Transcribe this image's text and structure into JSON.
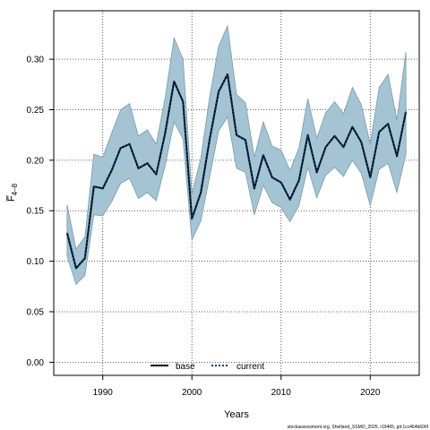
{
  "chart_data": {
    "type": "line",
    "xlabel": "Years",
    "ylabel": "F̅",
    "ylabel_sub": "4–8",
    "xlim": [
      1984.5,
      2025.5
    ],
    "ylim": [
      -0.013,
      0.348
    ],
    "x_ticks": [
      1990,
      2000,
      2010,
      2020
    ],
    "y_ticks": [
      0.0,
      0.05,
      0.1,
      0.15,
      0.2,
      0.25,
      0.3
    ],
    "y_tick_labels": [
      "0.00",
      "0.05",
      "0.10",
      "0.15",
      "0.20",
      "0.25",
      "0.30"
    ],
    "grid": true,
    "legend_position": "bottom-center",
    "band_color": "#a5c4d3",
    "band_edge_color": "#7a9aaa",
    "x": [
      1986,
      1987,
      1988,
      1989,
      1990,
      1991,
      1992,
      1993,
      1994,
      1995,
      1996,
      1997,
      1998,
      1999,
      2000,
      2001,
      2002,
      2003,
      2004,
      2005,
      2006,
      2007,
      2008,
      2009,
      2010,
      2011,
      2012,
      2013,
      2014,
      2015,
      2016,
      2017,
      2018,
      2019,
      2020,
      2021,
      2022,
      2023,
      2024
    ],
    "series": [
      {
        "name": "base",
        "color": "#000000",
        "style": "solid",
        "values": [
          0.128,
          0.093,
          0.103,
          0.174,
          0.172,
          0.19,
          0.212,
          0.216,
          0.192,
          0.197,
          0.186,
          0.227,
          0.278,
          0.258,
          0.142,
          0.168,
          0.221,
          0.268,
          0.285,
          0.225,
          0.22,
          0.172,
          0.205,
          0.183,
          0.178,
          0.161,
          0.18,
          0.225,
          0.188,
          0.213,
          0.224,
          0.213,
          0.233,
          0.218,
          0.183,
          0.228,
          0.236,
          0.204,
          0.248
        ]
      },
      {
        "name": "current",
        "color": "#003c6e",
        "style": "dotted",
        "values": [
          0.128,
          0.093,
          0.103,
          0.174,
          0.172,
          0.19,
          0.212,
          0.216,
          0.192,
          0.197,
          0.186,
          0.227,
          0.278,
          0.258,
          0.142,
          0.168,
          0.221,
          0.268,
          0.285,
          0.225,
          0.22,
          0.172,
          0.205,
          0.183,
          0.178,
          0.161,
          0.18,
          0.225,
          0.188,
          0.213,
          0.224,
          0.213,
          0.233,
          0.218,
          0.183,
          0.228,
          0.236,
          0.204,
          0.248
        ]
      }
    ],
    "band_upper": [
      0.156,
      0.112,
      0.124,
      0.206,
      0.203,
      0.227,
      0.25,
      0.256,
      0.224,
      0.23,
      0.216,
      0.262,
      0.321,
      0.3,
      0.167,
      0.202,
      0.263,
      0.313,
      0.333,
      0.265,
      0.257,
      0.203,
      0.238,
      0.214,
      0.21,
      0.19,
      0.212,
      0.261,
      0.222,
      0.247,
      0.258,
      0.246,
      0.272,
      0.255,
      0.216,
      0.272,
      0.285,
      0.24,
      0.307
    ],
    "band_lower": [
      0.105,
      0.077,
      0.086,
      0.146,
      0.145,
      0.159,
      0.177,
      0.182,
      0.162,
      0.168,
      0.16,
      0.195,
      0.238,
      0.221,
      0.121,
      0.14,
      0.184,
      0.229,
      0.243,
      0.192,
      0.188,
      0.146,
      0.175,
      0.158,
      0.153,
      0.139,
      0.155,
      0.193,
      0.163,
      0.185,
      0.193,
      0.184,
      0.2,
      0.187,
      0.155,
      0.191,
      0.197,
      0.168,
      0.206
    ]
  },
  "footnote": "stockassessment.org, Shetland_SSMO_2025, r19465, git:1cc464b606f"
}
